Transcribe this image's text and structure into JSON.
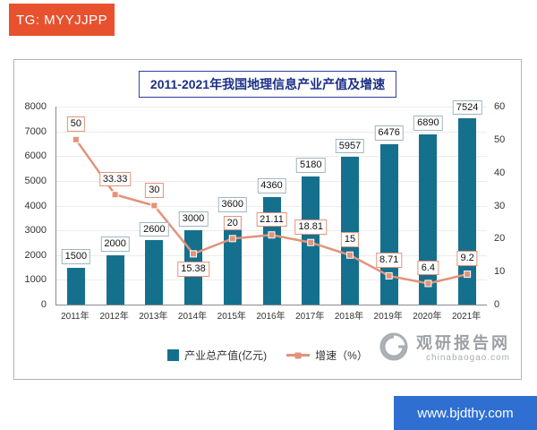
{
  "top_banner": {
    "label": "TG: MYYJJPP",
    "bg": "#e8512e"
  },
  "bottom_banner": {
    "label": "www.bjdthy.com",
    "bg": "#2f6fd2"
  },
  "watermark": {
    "title": "观研报告网",
    "subtitle": "chinabaogao.com"
  },
  "chart_data": {
    "type": "combo-bar-line",
    "title": "2011-2021年我国地理信息产业产值及增速",
    "categories": [
      "2011年",
      "2012年",
      "2013年",
      "2014年",
      "2015年",
      "2016年",
      "2017年",
      "2018年",
      "2019年",
      "2020年",
      "2021年"
    ],
    "series": [
      {
        "name": "产业总产值(亿元)",
        "type": "bar",
        "axis": "left",
        "color": "#15708e",
        "values": [
          1500,
          2000,
          2600,
          3000,
          3600,
          4360,
          5180,
          5957,
          6476,
          6890,
          7524
        ]
      },
      {
        "name": "增速（%）",
        "type": "line",
        "axis": "right",
        "color": "#e2937a",
        "values": [
          50,
          33.33,
          30,
          15.38,
          20,
          21.11,
          18.81,
          15,
          8.71,
          6.4,
          9.2
        ]
      }
    ],
    "left_axis": {
      "min": 0,
      "max": 8000,
      "step": 1000
    },
    "right_axis": {
      "min": 0,
      "max": 60,
      "step": 10
    },
    "legend_position": "bottom",
    "grid": true,
    "data_labels": true
  }
}
